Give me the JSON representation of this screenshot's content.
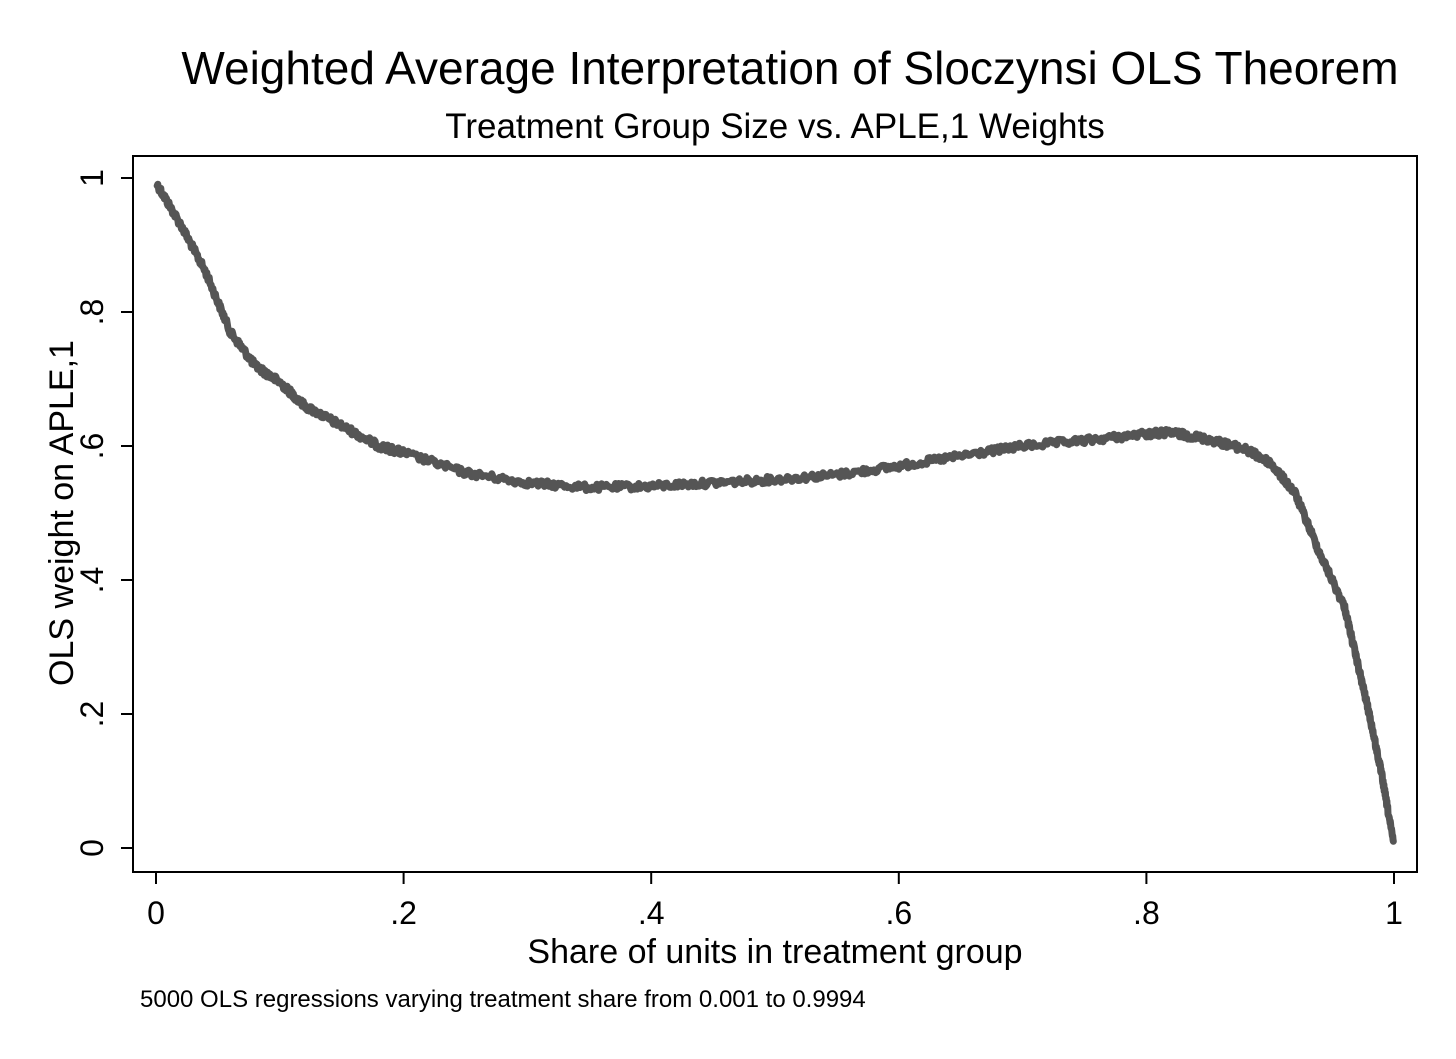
{
  "chart_data": {
    "type": "line",
    "title": "Weighted Average Interpretation of Sloczynsi OLS Theorem",
    "subtitle": "Treatment Group Size vs. APLE,1 Weights",
    "xlabel": "Share of units in treatment group",
    "ylabel": "OLS weight on APLE,1",
    "note": "5000 OLS regressions varying treatment share from 0.001 to 0.9994",
    "xlim": [
      0,
      1
    ],
    "ylim": [
      0,
      1
    ],
    "x_ticks": [
      0,
      0.2,
      0.4,
      0.6,
      0.8,
      1
    ],
    "x_tick_labels": [
      "0",
      ".2",
      ".4",
      ".6",
      ".8",
      "1"
    ],
    "y_ticks": [
      0,
      0.2,
      0.4,
      0.6,
      0.8,
      1
    ],
    "y_tick_labels": [
      "0",
      ".2",
      ".4",
      ".6",
      ".8",
      "1"
    ],
    "grid": false,
    "legend": "none",
    "line_color": "#555555",
    "x": [
      0.001,
      0.02,
      0.04,
      0.06,
      0.08,
      0.1,
      0.12,
      0.15,
      0.18,
      0.2,
      0.25,
      0.3,
      0.35,
      0.4,
      0.45,
      0.5,
      0.55,
      0.6,
      0.65,
      0.7,
      0.75,
      0.8,
      0.82,
      0.85,
      0.88,
      0.9,
      0.92,
      0.94,
      0.96,
      0.97,
      0.98,
      0.99,
      0.9994
    ],
    "y": [
      0.99,
      0.93,
      0.86,
      0.77,
      0.72,
      0.695,
      0.66,
      0.63,
      0.6,
      0.59,
      0.56,
      0.545,
      0.538,
      0.54,
      0.545,
      0.55,
      0.557,
      0.57,
      0.585,
      0.6,
      0.608,
      0.618,
      0.62,
      0.61,
      0.595,
      0.575,
      0.53,
      0.44,
      0.36,
      0.28,
      0.2,
      0.11,
      0.01
    ]
  }
}
